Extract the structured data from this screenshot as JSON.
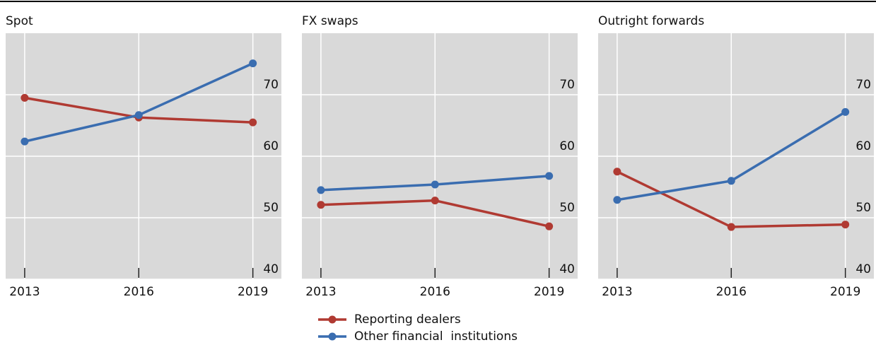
{
  "series_names": [
    "Reporting dealers",
    "Other financial  institutions"
  ],
  "chart_data": [
    {
      "type": "line",
      "title": "Spot",
      "x": [
        2013,
        2016,
        2019
      ],
      "xlim": [
        2012.5,
        2019.75
      ],
      "xticks": [
        2013,
        2016,
        2019
      ],
      "ylim": [
        40,
        80
      ],
      "yticks": [
        40,
        50,
        60,
        70
      ],
      "grid": true,
      "series": [
        {
          "color": "#b03a32",
          "values": [
            69.5,
            66.3,
            65.5
          ]
        },
        {
          "color": "#3a6db0",
          "values": [
            62.4,
            66.7,
            75.1
          ]
        }
      ]
    },
    {
      "type": "line",
      "title": "FX swaps",
      "x": [
        2013,
        2016,
        2019
      ],
      "xlim": [
        2012.5,
        2019.75
      ],
      "xticks": [
        2013,
        2016,
        2019
      ],
      "ylim": [
        40,
        80
      ],
      "yticks": [
        40,
        50,
        60,
        70
      ],
      "grid": true,
      "series": [
        {
          "color": "#b03a32",
          "values": [
            52.1,
            52.8,
            48.6
          ]
        },
        {
          "color": "#3a6db0",
          "values": [
            54.5,
            55.4,
            56.8
          ]
        }
      ]
    },
    {
      "type": "line",
      "title": "Outright forwards",
      "x": [
        2013,
        2016,
        2019
      ],
      "xlim": [
        2012.5,
        2019.75
      ],
      "xticks": [
        2013,
        2016,
        2019
      ],
      "ylim": [
        40,
        80
      ],
      "yticks": [
        40,
        50,
        60,
        70
      ],
      "grid": true,
      "series": [
        {
          "color": "#b03a32",
          "values": [
            57.5,
            48.5,
            48.9
          ]
        },
        {
          "color": "#3a6db0",
          "values": [
            52.9,
            56.0,
            67.2
          ]
        }
      ]
    }
  ]
}
